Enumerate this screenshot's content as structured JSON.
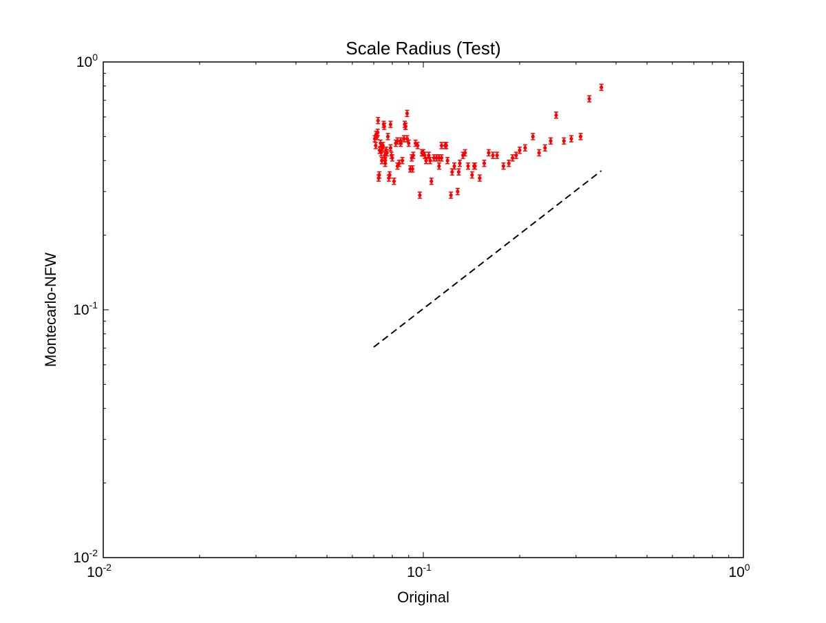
{
  "chart_data": {
    "type": "scatter",
    "title": "Scale Radius (Test)",
    "xlabel": "Original",
    "ylabel": "Montecarlo-NFW",
    "xscale": "log",
    "yscale": "log",
    "xlim": [
      0.01,
      1
    ],
    "ylim": [
      0.01,
      1
    ],
    "grid": false,
    "legend": "none",
    "x_ticks": [
      {
        "base": "10",
        "exp": "-2",
        "value": 0.01
      },
      {
        "base": "10",
        "exp": "-1",
        "value": 0.1
      },
      {
        "base": "10",
        "exp": "0",
        "value": 1
      }
    ],
    "y_ticks": [
      {
        "base": "10",
        "exp": "-2",
        "value": 0.01
      },
      {
        "base": "10",
        "exp": "-1",
        "value": 0.1
      },
      {
        "base": "10",
        "exp": "0",
        "value": 1
      }
    ],
    "series": [
      {
        "style": "points-with-errorbars",
        "color": "#ff0000",
        "x": [
          0.0705,
          0.071,
          0.0712,
          0.0718,
          0.0722,
          0.0725,
          0.0728,
          0.073,
          0.0735,
          0.0738,
          0.0742,
          0.0745,
          0.0748,
          0.0752,
          0.0755,
          0.0758,
          0.076,
          0.0765,
          0.077,
          0.0775,
          0.078,
          0.0785,
          0.079,
          0.0795,
          0.08,
          0.081,
          0.082,
          0.083,
          0.084,
          0.085,
          0.086,
          0.087,
          0.0875,
          0.088,
          0.089,
          0.09,
          0.091,
          0.092,
          0.093,
          0.0945,
          0.096,
          0.0975,
          0.099,
          0.1,
          0.102,
          0.104,
          0.106,
          0.108,
          0.11,
          0.112,
          0.114,
          0.117,
          0.119,
          0.122,
          0.125,
          0.128,
          0.13,
          0.133,
          0.135,
          0.138,
          0.142,
          0.145,
          0.15,
          0.155,
          0.16,
          0.165,
          0.17,
          0.178,
          0.185,
          0.19,
          0.195,
          0.2,
          0.208,
          0.22,
          0.23,
          0.24,
          0.25,
          0.26,
          0.275,
          0.29,
          0.31,
          0.33,
          0.36,
          0.089,
          0.123,
          0.0925,
          0.105,
          0.129,
          0.144,
          0.079,
          0.088,
          0.114,
          0.118,
          0.076,
          0.085,
          0.072,
          0.083,
          0.101,
          0.112,
          0.099
        ],
        "y": [
          0.49,
          0.46,
          0.51,
          0.5,
          0.58,
          0.34,
          0.35,
          0.44,
          0.47,
          0.43,
          0.4,
          0.45,
          0.46,
          0.56,
          0.55,
          0.42,
          0.4,
          0.44,
          0.43,
          0.5,
          0.34,
          0.35,
          0.45,
          0.42,
          0.41,
          0.33,
          0.47,
          0.48,
          0.39,
          0.48,
          0.4,
          0.49,
          0.56,
          0.55,
          0.49,
          0.47,
          0.37,
          0.41,
          0.42,
          0.47,
          0.46,
          0.29,
          0.43,
          0.43,
          0.4,
          0.42,
          0.33,
          0.41,
          0.41,
          0.38,
          0.46,
          0.46,
          0.4,
          0.29,
          0.38,
          0.3,
          0.39,
          0.42,
          0.43,
          0.38,
          0.35,
          0.38,
          0.34,
          0.39,
          0.43,
          0.42,
          0.42,
          0.38,
          0.39,
          0.41,
          0.42,
          0.44,
          0.45,
          0.5,
          0.43,
          0.45,
          0.48,
          0.61,
          0.48,
          0.49,
          0.5,
          0.71,
          0.79,
          0.62,
          0.36,
          0.37,
          0.4,
          0.36,
          0.38,
          0.56,
          0.55,
          0.41,
          0.46,
          0.39,
          0.47,
          0.52,
          0.38,
          0.42,
          0.41,
          0.43
        ]
      },
      {
        "style": "dashed-line",
        "color": "#000000",
        "x": [
          0.07,
          0.36
        ],
        "y": [
          0.0707,
          0.364
        ]
      }
    ]
  }
}
